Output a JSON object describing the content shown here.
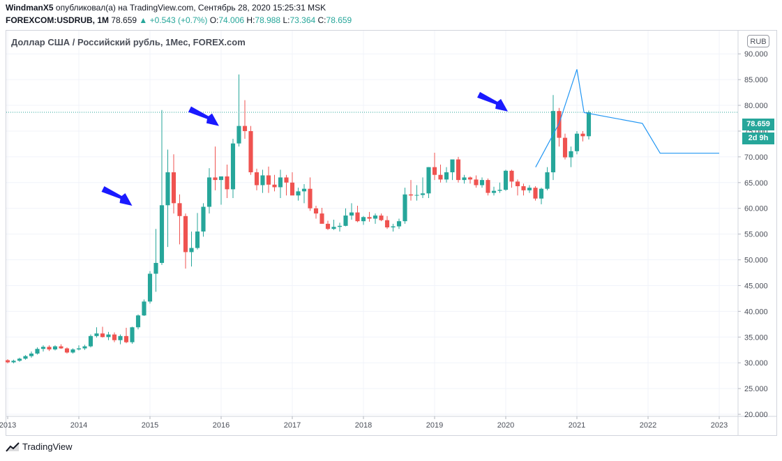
{
  "header": {
    "user": "WindmanX5",
    "published": "опубликовал(а) на TradingView.com, Сентябрь 28, 2020 15:25:31 MSK",
    "symbol": "FOREXCOM:USDRUB, 1M",
    "last": "78.659",
    "change": "▲ +0.543 (+0.7%)",
    "o_label": "O:",
    "o_value": "74.006",
    "h_label": "H:",
    "h_value": "78.988",
    "l_label": "L:",
    "l_value": "73.364",
    "c_label": "C:",
    "c_value": "78.659"
  },
  "chart_title": "Доллар США / Российский рубль, 1Мес, FOREX.com",
  "currency_button": "RUB",
  "price_tag": "78.659",
  "time_tag": "2d 9h",
  "brand": "TradingView",
  "colors": {
    "up": "#26a69a",
    "down": "#ef5350",
    "grid": "#f0f3fa",
    "projection": "#2196f3",
    "arrow": "#1a1aff"
  },
  "icons": [
    "tradingview-logo-icon",
    "arrow-marker-icon"
  ],
  "chart_data": {
    "type": "candlestick",
    "ylim": [
      20,
      95
    ],
    "y_ticks": [
      "20.000",
      "25.000",
      "30.000",
      "35.000",
      "40.000",
      "45.000",
      "50.000",
      "55.000",
      "60.000",
      "65.000",
      "70.000",
      "75.000",
      "80.000",
      "85.000",
      "90.000"
    ],
    "y_tick_values": [
      20,
      25,
      30,
      35,
      40,
      45,
      50,
      55,
      60,
      65,
      70,
      75,
      80,
      85,
      90
    ],
    "x_ticks": [
      "2013",
      "2014",
      "2015",
      "2016",
      "2017",
      "2018",
      "2019",
      "2020",
      "2021",
      "2022",
      "2023"
    ],
    "x_tick_values": [
      2013,
      2014,
      2015,
      2016,
      2017,
      2018,
      2019,
      2020,
      2021,
      2022,
      2023
    ],
    "last_price": 78.659,
    "candles": [
      {
        "o": 30.5,
        "h": 30.7,
        "l": 29.9,
        "c": 30.1
      },
      {
        "o": 30.1,
        "h": 30.6,
        "l": 29.9,
        "c": 30.4
      },
      {
        "o": 30.4,
        "h": 31.0,
        "l": 30.2,
        "c": 30.8
      },
      {
        "o": 30.8,
        "h": 31.5,
        "l": 30.6,
        "c": 31.3
      },
      {
        "o": 31.3,
        "h": 32.2,
        "l": 31.0,
        "c": 31.8
      },
      {
        "o": 31.8,
        "h": 33.0,
        "l": 31.6,
        "c": 32.7
      },
      {
        "o": 32.7,
        "h": 33.4,
        "l": 32.2,
        "c": 33.1
      },
      {
        "o": 33.1,
        "h": 33.4,
        "l": 32.3,
        "c": 32.6
      },
      {
        "o": 32.6,
        "h": 33.4,
        "l": 32.4,
        "c": 33.2
      },
      {
        "o": 33.2,
        "h": 33.6,
        "l": 32.7,
        "c": 32.8
      },
      {
        "o": 32.8,
        "h": 33.0,
        "l": 31.8,
        "c": 32.0
      },
      {
        "o": 32.0,
        "h": 32.8,
        "l": 31.8,
        "c": 32.6
      },
      {
        "o": 32.6,
        "h": 33.4,
        "l": 32.4,
        "c": 32.8
      },
      {
        "o": 32.8,
        "h": 33.5,
        "l": 32.5,
        "c": 33.2
      },
      {
        "o": 33.2,
        "h": 35.5,
        "l": 33.0,
        "c": 35.2
      },
      {
        "o": 35.2,
        "h": 36.9,
        "l": 34.9,
        "c": 35.7
      },
      {
        "o": 35.7,
        "h": 37.0,
        "l": 34.9,
        "c": 35.0
      },
      {
        "o": 35.0,
        "h": 36.0,
        "l": 34.4,
        "c": 35.5
      },
      {
        "o": 35.5,
        "h": 35.9,
        "l": 34.0,
        "c": 34.4
      },
      {
        "o": 34.4,
        "h": 35.5,
        "l": 33.6,
        "c": 35.2
      },
      {
        "o": 35.2,
        "h": 36.8,
        "l": 33.8,
        "c": 34.0
      },
      {
        "o": 34.0,
        "h": 37.0,
        "l": 33.7,
        "c": 36.9
      },
      {
        "o": 36.9,
        "h": 39.4,
        "l": 36.5,
        "c": 39.2
      },
      {
        "o": 39.2,
        "h": 42.3,
        "l": 39.1,
        "c": 41.9
      },
      {
        "o": 41.9,
        "h": 47.8,
        "l": 41.5,
        "c": 47.3
      },
      {
        "o": 47.3,
        "h": 56.0,
        "l": 43.8,
        "c": 49.4
      },
      {
        "o": 49.4,
        "h": 79.1,
        "l": 49.0,
        "c": 60.6
      },
      {
        "o": 60.6,
        "h": 71.4,
        "l": 52.5,
        "c": 67.0
      },
      {
        "o": 67.0,
        "h": 70.5,
        "l": 59.0,
        "c": 61.0
      },
      {
        "o": 61.0,
        "h": 62.7,
        "l": 53.0,
        "c": 58.5
      },
      {
        "o": 58.5,
        "h": 59.0,
        "l": 48.3,
        "c": 51.5
      },
      {
        "o": 51.5,
        "h": 55.5,
        "l": 48.7,
        "c": 52.3
      },
      {
        "o": 52.3,
        "h": 59.1,
        "l": 52.0,
        "c": 55.5
      },
      {
        "o": 55.5,
        "h": 61.0,
        "l": 54.5,
        "c": 60.3
      },
      {
        "o": 60.3,
        "h": 67.8,
        "l": 59.0,
        "c": 66.0
      },
      {
        "o": 66.0,
        "h": 72.0,
        "l": 63.5,
        "c": 65.5
      },
      {
        "o": 65.5,
        "h": 66.0,
        "l": 60.7,
        "c": 66.2
      },
      {
        "o": 66.2,
        "h": 68.5,
        "l": 62.0,
        "c": 63.7
      },
      {
        "o": 63.7,
        "h": 73.5,
        "l": 62.0,
        "c": 72.6
      },
      {
        "o": 72.6,
        "h": 86.0,
        "l": 72.0,
        "c": 76.0
      },
      {
        "o": 76.0,
        "h": 81.0,
        "l": 73.5,
        "c": 75.0
      },
      {
        "o": 75.0,
        "h": 76.0,
        "l": 66.5,
        "c": 67.0
      },
      {
        "o": 67.0,
        "h": 67.7,
        "l": 63.5,
        "c": 64.5
      },
      {
        "o": 64.5,
        "h": 67.5,
        "l": 63.0,
        "c": 66.4
      },
      {
        "o": 66.4,
        "h": 68.1,
        "l": 63.0,
        "c": 64.6
      },
      {
        "o": 64.6,
        "h": 66.5,
        "l": 63.3,
        "c": 64.1
      },
      {
        "o": 64.1,
        "h": 67.5,
        "l": 62.0,
        "c": 66.0
      },
      {
        "o": 66.0,
        "h": 66.5,
        "l": 62.5,
        "c": 65.0
      },
      {
        "o": 65.0,
        "h": 67.0,
        "l": 62.7,
        "c": 62.5
      },
      {
        "o": 62.5,
        "h": 64.0,
        "l": 61.5,
        "c": 63.3
      },
      {
        "o": 63.3,
        "h": 64.7,
        "l": 61.0,
        "c": 63.8
      },
      {
        "o": 63.8,
        "h": 66.0,
        "l": 59.5,
        "c": 60.0
      },
      {
        "o": 60.0,
        "h": 60.5,
        "l": 58.0,
        "c": 59.0
      },
      {
        "o": 59.0,
        "h": 60.1,
        "l": 57.5,
        "c": 57.0
      },
      {
        "o": 57.0,
        "h": 57.6,
        "l": 55.8,
        "c": 56.0
      },
      {
        "o": 56.0,
        "h": 57.8,
        "l": 55.8,
        "c": 56.4
      },
      {
        "o": 56.4,
        "h": 57.2,
        "l": 55.5,
        "c": 56.6
      },
      {
        "o": 56.6,
        "h": 60.0,
        "l": 56.5,
        "c": 58.6
      },
      {
        "o": 58.6,
        "h": 61.0,
        "l": 57.8,
        "c": 59.2
      },
      {
        "o": 59.2,
        "h": 60.5,
        "l": 57.3,
        "c": 57.5
      },
      {
        "o": 57.5,
        "h": 58.5,
        "l": 56.8,
        "c": 58.3
      },
      {
        "o": 58.3,
        "h": 59.3,
        "l": 57.4,
        "c": 58.0
      },
      {
        "o": 58.0,
        "h": 59.0,
        "l": 57.0,
        "c": 58.6
      },
      {
        "o": 58.6,
        "h": 59.0,
        "l": 57.5,
        "c": 57.7
      },
      {
        "o": 57.7,
        "h": 58.5,
        "l": 56.0,
        "c": 56.3
      },
      {
        "o": 56.3,
        "h": 57.0,
        "l": 55.5,
        "c": 56.5
      },
      {
        "o": 56.5,
        "h": 58.0,
        "l": 56.0,
        "c": 57.5
      },
      {
        "o": 57.5,
        "h": 64.0,
        "l": 57.0,
        "c": 62.7
      },
      {
        "o": 62.7,
        "h": 65.5,
        "l": 61.5,
        "c": 62.5
      },
      {
        "o": 62.5,
        "h": 64.5,
        "l": 61.5,
        "c": 62.6
      },
      {
        "o": 62.6,
        "h": 66.0,
        "l": 62.0,
        "c": 62.9
      },
      {
        "o": 62.9,
        "h": 68.0,
        "l": 62.0,
        "c": 68.0
      },
      {
        "o": 68.0,
        "h": 70.8,
        "l": 65.5,
        "c": 66.5
      },
      {
        "o": 66.5,
        "h": 68.5,
        "l": 65.0,
        "c": 65.6
      },
      {
        "o": 65.6,
        "h": 68.0,
        "l": 65.0,
        "c": 67.0
      },
      {
        "o": 67.0,
        "h": 69.0,
        "l": 65.5,
        "c": 69.5
      },
      {
        "o": 69.5,
        "h": 70.0,
        "l": 65.0,
        "c": 65.5
      },
      {
        "o": 65.5,
        "h": 66.5,
        "l": 64.8,
        "c": 66.0
      },
      {
        "o": 66.0,
        "h": 66.2,
        "l": 64.8,
        "c": 65.6
      },
      {
        "o": 65.6,
        "h": 66.4,
        "l": 64.0,
        "c": 64.5
      },
      {
        "o": 64.5,
        "h": 66.0,
        "l": 64.0,
        "c": 65.5
      },
      {
        "o": 65.5,
        "h": 65.8,
        "l": 62.5,
        "c": 63.0
      },
      {
        "o": 63.0,
        "h": 64.2,
        "l": 62.5,
        "c": 63.4
      },
      {
        "o": 63.4,
        "h": 65.0,
        "l": 63.0,
        "c": 63.6
      },
      {
        "o": 63.6,
        "h": 67.5,
        "l": 63.4,
        "c": 67.3
      },
      {
        "o": 67.3,
        "h": 67.5,
        "l": 64.0,
        "c": 65.2
      },
      {
        "o": 65.2,
        "h": 65.6,
        "l": 62.5,
        "c": 64.3
      },
      {
        "o": 64.3,
        "h": 64.8,
        "l": 62.5,
        "c": 63.5
      },
      {
        "o": 63.5,
        "h": 64.5,
        "l": 63.0,
        "c": 64.0
      },
      {
        "o": 64.0,
        "h": 64.3,
        "l": 61.5,
        "c": 61.9
      },
      {
        "o": 61.9,
        "h": 64.0,
        "l": 60.8,
        "c": 63.8
      },
      {
        "o": 63.8,
        "h": 68.0,
        "l": 63.5,
        "c": 67.0
      },
      {
        "o": 67.0,
        "h": 82.0,
        "l": 65.5,
        "c": 78.9
      },
      {
        "o": 78.9,
        "h": 79.5,
        "l": 72.0,
        "c": 73.7
      },
      {
        "o": 73.7,
        "h": 74.5,
        "l": 69.5,
        "c": 69.9
      },
      {
        "o": 69.9,
        "h": 72.0,
        "l": 68.0,
        "c": 71.1
      },
      {
        "o": 71.1,
        "h": 75.0,
        "l": 70.5,
        "c": 74.5
      },
      {
        "o": 74.5,
        "h": 75.0,
        "l": 73.0,
        "c": 74.0
      },
      {
        "o": 74.006,
        "h": 78.988,
        "l": 73.364,
        "c": 78.659
      }
    ],
    "projection": [
      {
        "x": 2020.42,
        "y": 68.0
      },
      {
        "x": 2020.75,
        "y": 76.5
      },
      {
        "x": 2021.0,
        "y": 87.0
      },
      {
        "x": 2021.1,
        "y": 78.6
      },
      {
        "x": 2021.92,
        "y": 76.5
      },
      {
        "x": 2022.17,
        "y": 70.7
      },
      {
        "x": 2023.0,
        "y": 70.7
      }
    ],
    "arrows": [
      {
        "x": 2014.75,
        "y": 60.5
      },
      {
        "x": 2015.97,
        "y": 76.0
      },
      {
        "x": 2020.03,
        "y": 78.8
      }
    ]
  }
}
